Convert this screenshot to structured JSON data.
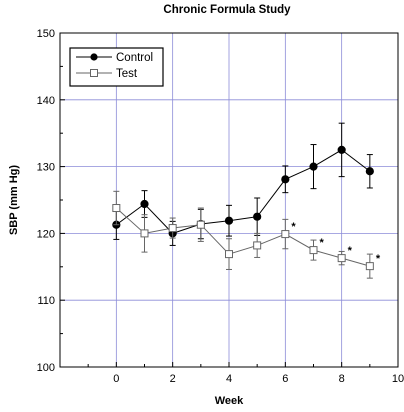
{
  "chart_data": {
    "type": "line",
    "title": "Chronic Formula Study",
    "xlabel": "Week",
    "ylabel": "SBP (mm Hg)",
    "xlim": [
      -2,
      10
    ],
    "ylim": [
      100,
      150
    ],
    "xticks": [
      0,
      2,
      4,
      6,
      8,
      10
    ],
    "yticks": [
      100,
      110,
      120,
      130,
      140,
      150
    ],
    "grid": true,
    "legend_position": "top-left",
    "series": [
      {
        "name": "Control",
        "marker": "filled-circle",
        "color": "#000000",
        "x": [
          0,
          1,
          2,
          3,
          4,
          5,
          6,
          7,
          8,
          9
        ],
        "y": [
          121.3,
          124.4,
          120.0,
          121.4,
          121.9,
          122.5,
          128.1,
          130.0,
          132.5,
          129.3
        ],
        "err": [
          2.2,
          2.0,
          1.8,
          2.2,
          2.3,
          2.8,
          2.0,
          3.3,
          4.0,
          2.5
        ]
      },
      {
        "name": "Test",
        "marker": "open-square",
        "color": "#666666",
        "x": [
          0,
          1,
          2,
          3,
          4,
          5,
          6,
          7,
          8,
          9
        ],
        "y": [
          123.8,
          120.0,
          120.8,
          121.3,
          116.9,
          118.2,
          119.9,
          117.5,
          116.3,
          115.1
        ],
        "err": [
          2.5,
          2.8,
          1.5,
          2.5,
          2.3,
          1.8,
          2.2,
          1.5,
          1.0,
          1.8
        ]
      }
    ],
    "annotations": [
      {
        "text": "*",
        "x": 6,
        "y": 119.9
      },
      {
        "text": "*",
        "x": 7,
        "y": 117.5
      },
      {
        "text": "*",
        "x": 8,
        "y": 116.3
      },
      {
        "text": "*",
        "x": 9,
        "y": 115.1
      }
    ]
  }
}
